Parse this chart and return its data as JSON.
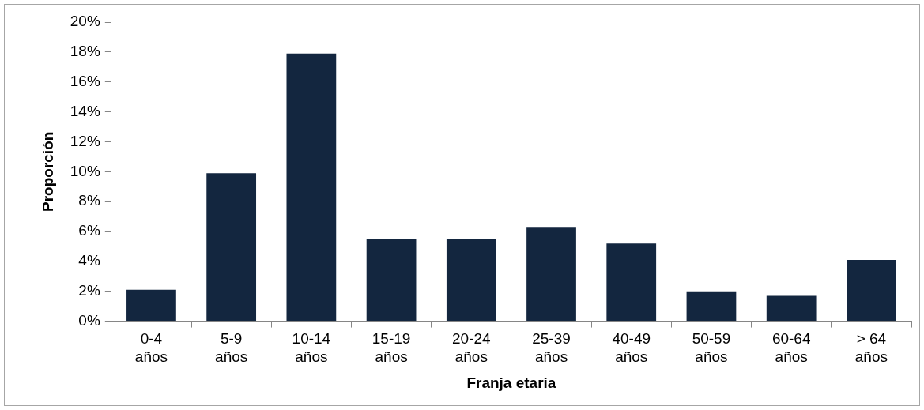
{
  "chart_data": {
    "type": "bar",
    "xlabel": "Franja etaria",
    "ylabel": "Proporción",
    "categories": [
      "0-4 años",
      "5-9 años",
      "10-14 años",
      "15-19 años",
      "20-24 años",
      "25-39 años",
      "40-49 años",
      "50-59 años",
      "60-64 años",
      "> 64 años"
    ],
    "values": [
      2.1,
      9.9,
      17.9,
      5.5,
      5.5,
      6.3,
      5.2,
      2.0,
      1.7,
      4.1
    ],
    "color": "#13263f",
    "ylim": [
      0,
      20
    ],
    "yticks": [
      {
        "value": 0,
        "label": "0%"
      },
      {
        "value": 2,
        "label": "2%"
      },
      {
        "value": 4,
        "label": "4%"
      },
      {
        "value": 6,
        "label": "6%"
      },
      {
        "value": 8,
        "label": "8%"
      },
      {
        "value": 10,
        "label": "10%"
      },
      {
        "value": 12,
        "label": "12%"
      },
      {
        "value": 14,
        "label": "14%"
      },
      {
        "value": 16,
        "label": "16%"
      },
      {
        "value": 18,
        "label": "18%"
      },
      {
        "value": 20,
        "label": "20%"
      }
    ],
    "grid": false,
    "legend": false
  }
}
